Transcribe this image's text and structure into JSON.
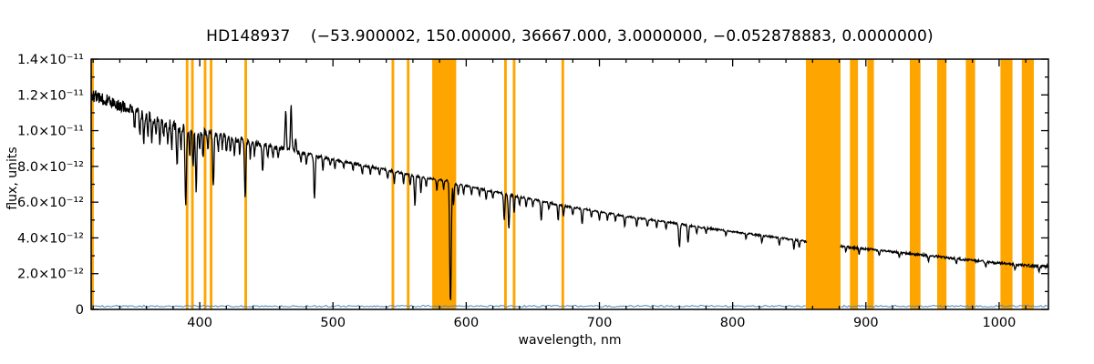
{
  "chart_data": {
    "type": "line",
    "title": "HD148937    (−53.900002, 150.00000, 36667.000, 3.0000000, −0.052878883, 0.0000000)",
    "xlabel": "wavelength, nm",
    "ylabel": "flux, units",
    "legend": "none",
    "grid": false,
    "colors": {
      "band": "#FFA500",
      "spectrum": "#000000",
      "error": "#4A86B8",
      "frame": "#000000"
    },
    "x_axis": {
      "range": [
        318.5,
        1037
      ],
      "major_ticks": [
        400,
        500,
        600,
        700,
        800,
        900,
        1000
      ],
      "major_tick_labels": [
        "400",
        "500",
        "600",
        "700",
        "800",
        "900",
        "1000"
      ],
      "minor_step": 20
    },
    "y_axis": {
      "units_scale": "1e-12",
      "range_1e12": [
        0,
        14
      ],
      "major_ticks_1e12": [
        0,
        2,
        4,
        6,
        8,
        10,
        12,
        14
      ],
      "tick_labels": [
        "0",
        "2.0×10⁻¹²",
        "4.0×10⁻¹²",
        "6.0×10⁻¹²",
        "8.0×10⁻¹²",
        "1.0×10⁻¹¹",
        "1.2×10⁻¹¹",
        "1.4×10⁻¹¹"
      ],
      "minor_step_1e12": 1
    },
    "bands_nm": [
      [
        318.5,
        320.5
      ],
      [
        389.5,
        391.5
      ],
      [
        393.5,
        395.5
      ],
      [
        403,
        405
      ],
      [
        407.5,
        409.5
      ],
      [
        433.5,
        435.5
      ],
      [
        544,
        546
      ],
      [
        555.5,
        557.5
      ],
      [
        574.5,
        592.5
      ],
      [
        628.5,
        630.5
      ],
      [
        635,
        637
      ],
      [
        671.5,
        673.5
      ],
      [
        855,
        881
      ],
      [
        888,
        894
      ],
      [
        901,
        906
      ],
      [
        933,
        941
      ],
      [
        953.5,
        960.5
      ],
      [
        975,
        982
      ],
      [
        1001,
        1010
      ],
      [
        1017,
        1026
      ]
    ],
    "spectrum": {
      "description": "stellar flux vs wavelength, declining continuum with absorption/emission features; values in 1e-12 flux units",
      "continuum_1e12": [
        [
          318.5,
          12.0
        ],
        [
          330,
          11.7
        ],
        [
          340,
          11.4
        ],
        [
          350,
          11.1
        ],
        [
          360,
          10.8
        ],
        [
          370,
          10.5
        ],
        [
          380,
          10.3
        ],
        [
          390,
          10.1
        ],
        [
          400,
          9.95
        ],
        [
          410,
          9.8
        ],
        [
          420,
          9.65
        ],
        [
          430,
          9.5
        ],
        [
          440,
          9.3
        ],
        [
          450,
          9.15
        ],
        [
          460,
          9.0
        ],
        [
          470,
          8.85
        ],
        [
          480,
          8.7
        ],
        [
          490,
          8.55
        ],
        [
          500,
          8.4
        ],
        [
          510,
          8.25
        ],
        [
          520,
          8.1
        ],
        [
          530,
          7.95
        ],
        [
          540,
          7.8
        ],
        [
          550,
          7.65
        ],
        [
          560,
          7.5
        ],
        [
          570,
          7.35
        ],
        [
          580,
          7.25
        ],
        [
          586,
          7.2
        ],
        [
          592,
          7.0
        ],
        [
          600,
          6.9
        ],
        [
          610,
          6.75
        ],
        [
          620,
          6.6
        ],
        [
          630,
          6.45
        ],
        [
          640,
          6.3
        ],
        [
          650,
          6.15
        ],
        [
          660,
          6.0
        ],
        [
          670,
          5.85
        ],
        [
          680,
          5.7
        ],
        [
          690,
          5.6
        ],
        [
          700,
          5.45
        ],
        [
          710,
          5.35
        ],
        [
          720,
          5.2
        ],
        [
          730,
          5.1
        ],
        [
          740,
          5.0
        ],
        [
          750,
          4.9
        ],
        [
          760,
          4.8
        ],
        [
          770,
          4.65
        ],
        [
          780,
          4.55
        ],
        [
          790,
          4.45
        ],
        [
          800,
          4.35
        ],
        [
          810,
          4.25
        ],
        [
          820,
          4.15
        ],
        [
          830,
          4.05
        ],
        [
          840,
          3.95
        ],
        [
          850,
          3.85
        ],
        [
          860,
          3.75
        ],
        [
          870,
          3.65
        ],
        [
          880,
          3.55
        ],
        [
          890,
          3.45
        ],
        [
          900,
          3.38
        ],
        [
          910,
          3.3
        ],
        [
          920,
          3.22
        ],
        [
          930,
          3.14
        ],
        [
          940,
          3.06
        ],
        [
          950,
          2.98
        ],
        [
          960,
          2.9
        ],
        [
          970,
          2.82
        ],
        [
          980,
          2.74
        ],
        [
          990,
          2.66
        ],
        [
          1000,
          2.58
        ],
        [
          1010,
          2.52
        ],
        [
          1020,
          2.46
        ],
        [
          1030,
          2.42
        ],
        [
          1037,
          2.4
        ]
      ],
      "features_nm_amp_sigma": [
        [
          351,
          -0.8,
          0.45
        ],
        [
          355,
          -1.1,
          0.45
        ],
        [
          358,
          -1.4,
          0.45
        ],
        [
          361,
          -0.9,
          0.4
        ],
        [
          364,
          -1.2,
          0.45
        ],
        [
          367,
          -0.8,
          0.4
        ],
        [
          370,
          -1.3,
          0.45
        ],
        [
          373,
          -0.9,
          0.4
        ],
        [
          376,
          -1.0,
          0.4
        ],
        [
          379,
          -1.2,
          0.45
        ],
        [
          383,
          -2.3,
          0.5
        ],
        [
          386,
          -1.2,
          0.4
        ],
        [
          389.5,
          -4.4,
          0.5
        ],
        [
          392.5,
          -1.5,
          0.4
        ],
        [
          395,
          -2.0,
          0.45
        ],
        [
          397.3,
          -3.3,
          0.5
        ],
        [
          400,
          -1.0,
          0.4
        ],
        [
          402.5,
          -1.4,
          0.4
        ],
        [
          406,
          -1.0,
          0.4
        ],
        [
          410.2,
          -3.1,
          0.5
        ],
        [
          414,
          -0.9,
          0.4
        ],
        [
          417,
          -0.7,
          0.4
        ],
        [
          420,
          -0.9,
          0.4
        ],
        [
          423,
          -0.7,
          0.4
        ],
        [
          426,
          -1.0,
          0.4
        ],
        [
          430,
          -0.8,
          0.4
        ],
        [
          434.1,
          -3.3,
          0.5
        ],
        [
          438,
          -0.9,
          0.4
        ],
        [
          441,
          -0.6,
          0.4
        ],
        [
          447.2,
          -1.6,
          0.45
        ],
        [
          451,
          -0.6,
          0.4
        ],
        [
          455,
          -0.7,
          0.4
        ],
        [
          459,
          -0.5,
          0.4
        ],
        [
          464.5,
          2.2,
          0.5
        ],
        [
          468.6,
          2.5,
          0.5
        ],
        [
          472,
          0.7,
          0.4
        ],
        [
          476,
          -0.5,
          0.4
        ],
        [
          480,
          -0.6,
          0.4
        ],
        [
          486.1,
          -2.5,
          0.5
        ],
        [
          492.5,
          -0.7,
          0.4
        ],
        [
          498,
          -0.4,
          0.4
        ],
        [
          501.5,
          -0.6,
          0.4
        ],
        [
          508,
          -0.4,
          0.4
        ],
        [
          515,
          -0.4,
          0.4
        ],
        [
          522,
          -0.5,
          0.4
        ],
        [
          528,
          -0.4,
          0.4
        ],
        [
          535,
          -0.4,
          0.4
        ],
        [
          541,
          -0.5,
          0.4
        ],
        [
          546,
          -0.7,
          0.4
        ],
        [
          553,
          -0.6,
          0.4
        ],
        [
          558,
          -0.6,
          0.4
        ],
        [
          561.5,
          -1.7,
          0.45
        ],
        [
          566,
          -0.9,
          0.4
        ],
        [
          570,
          -0.5,
          0.4
        ],
        [
          578,
          -0.6,
          0.4
        ],
        [
          583,
          -0.5,
          0.4
        ],
        [
          588.2,
          -6.9,
          0.55
        ],
        [
          590.5,
          -1.2,
          0.4
        ],
        [
          594,
          -0.6,
          0.4
        ],
        [
          598,
          -0.5,
          0.4
        ],
        [
          604,
          -0.4,
          0.4
        ],
        [
          610,
          -0.4,
          0.4
        ],
        [
          615,
          -0.5,
          0.4
        ],
        [
          620,
          -0.4,
          0.4
        ],
        [
          628.5,
          -1.5,
          0.45
        ],
        [
          632,
          -1.9,
          0.5
        ],
        [
          636,
          -1.0,
          0.4
        ],
        [
          640,
          -0.5,
          0.4
        ],
        [
          645,
          -0.5,
          0.4
        ],
        [
          650,
          -0.4,
          0.4
        ],
        [
          656.3,
          -1.1,
          0.45
        ],
        [
          662,
          -0.4,
          0.4
        ],
        [
          669,
          -0.9,
          0.4
        ],
        [
          673,
          -0.6,
          0.4
        ],
        [
          680,
          -0.4,
          0.4
        ],
        [
          687,
          -0.9,
          0.45
        ],
        [
          694,
          -0.4,
          0.4
        ],
        [
          700,
          -0.5,
          0.4
        ],
        [
          706,
          -0.4,
          0.4
        ],
        [
          712,
          -0.4,
          0.4
        ],
        [
          719,
          -0.6,
          0.4
        ],
        [
          728,
          -0.5,
          0.4
        ],
        [
          736,
          -0.4,
          0.4
        ],
        [
          743,
          -0.4,
          0.4
        ],
        [
          750,
          -0.4,
          0.4
        ],
        [
          760,
          -1.3,
          0.55
        ],
        [
          766.5,
          -1.0,
          0.5
        ],
        [
          773,
          -0.4,
          0.4
        ],
        [
          780,
          -0.3,
          0.4
        ],
        [
          795,
          -0.3,
          0.4
        ],
        [
          810,
          -0.3,
          0.4
        ],
        [
          822,
          -0.4,
          0.4
        ],
        [
          835,
          -0.4,
          0.4
        ],
        [
          846,
          -0.5,
          0.4
        ],
        [
          850,
          -0.4,
          0.4
        ],
        [
          885,
          -0.3,
          0.4
        ],
        [
          895,
          -0.3,
          0.4
        ],
        [
          910,
          -0.3,
          0.4
        ],
        [
          925,
          -0.3,
          0.4
        ],
        [
          947,
          -0.3,
          0.4
        ],
        [
          968,
          -0.3,
          0.4
        ],
        [
          990,
          -0.3,
          0.4
        ],
        [
          1012,
          -0.3,
          0.4
        ],
        [
          1030,
          -0.3,
          0.4
        ]
      ],
      "noise_amp_1e12": [
        [
          318.5,
          0.35
        ],
        [
          360,
          0.32
        ],
        [
          400,
          0.28
        ],
        [
          440,
          0.16
        ],
        [
          480,
          0.1
        ],
        [
          520,
          0.07
        ],
        [
          600,
          0.06
        ],
        [
          700,
          0.05
        ],
        [
          800,
          0.05
        ],
        [
          900,
          0.06
        ],
        [
          1000,
          0.07
        ],
        [
          1037,
          0.08
        ]
      ],
      "gaps_nm": [
        [
          856,
          880.5
        ]
      ],
      "sample_step_nm": 0.35
    },
    "error_line": {
      "level_1e12": 0.18,
      "noise_1e12": 0.05
    }
  }
}
